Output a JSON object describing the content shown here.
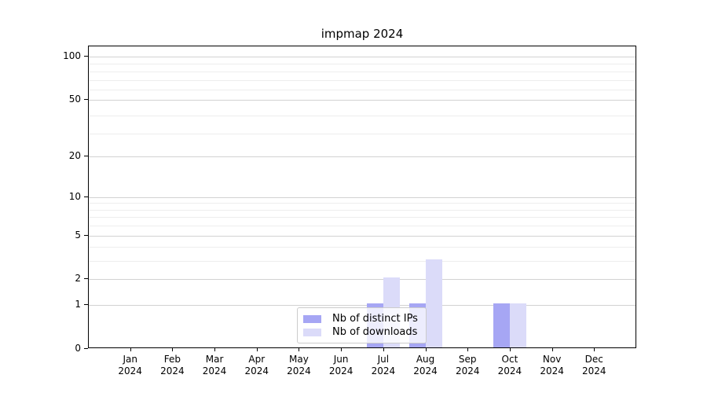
{
  "chart_data": {
    "type": "bar",
    "title": "impmap 2024",
    "x_year": "2024",
    "categories": [
      "Jan",
      "Feb",
      "Mar",
      "Apr",
      "May",
      "Jun",
      "Jul",
      "Aug",
      "Sep",
      "Oct",
      "Nov",
      "Dec"
    ],
    "series": [
      {
        "name": "Nb of distinct IPs",
        "color": "#a6a6f4",
        "values": [
          0,
          0,
          0,
          0,
          0,
          0,
          1,
          1,
          0,
          1,
          0,
          0
        ]
      },
      {
        "name": "Nb of downloads",
        "color": "#dbdbf9",
        "values": [
          0,
          0,
          0,
          0,
          0,
          0,
          2,
          3,
          0,
          1,
          0,
          0
        ]
      }
    ],
    "y_ticks": [
      0,
      1,
      2,
      5,
      10,
      20,
      50,
      100
    ],
    "y_scale": "log1p",
    "ylim": [
      0,
      118
    ],
    "grid": true,
    "legend_position": "lower center"
  }
}
